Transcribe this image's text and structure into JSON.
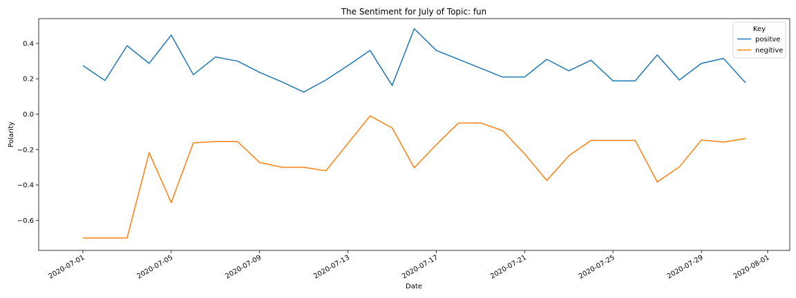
{
  "chart_data": {
    "type": "line",
    "title": "The Sentiment for July of Topic: fun",
    "xlabel": "Date",
    "ylabel": "Polarity",
    "x": [
      "2020-07-01",
      "2020-07-02",
      "2020-07-03",
      "2020-07-04",
      "2020-07-05",
      "2020-07-06",
      "2020-07-07",
      "2020-07-08",
      "2020-07-09",
      "2020-07-10",
      "2020-07-11",
      "2020-07-12",
      "2020-07-13",
      "2020-07-14",
      "2020-07-15",
      "2020-07-16",
      "2020-07-17",
      "2020-07-18",
      "2020-07-19",
      "2020-07-20",
      "2020-07-21",
      "2020-07-22",
      "2020-07-23",
      "2020-07-24",
      "2020-07-25",
      "2020-07-26",
      "2020-07-27",
      "2020-07-28",
      "2020-07-29",
      "2020-07-30",
      "2020-07-31"
    ],
    "series": [
      {
        "name": "positve",
        "color": "#1f77b4",
        "values": [
          0.275,
          0.19,
          0.387,
          0.287,
          0.447,
          0.223,
          0.323,
          0.3,
          0.236,
          0.183,
          0.125,
          0.193,
          0.275,
          0.36,
          0.162,
          0.483,
          0.36,
          0.31,
          0.26,
          0.21,
          0.21,
          0.31,
          0.245,
          0.305,
          0.188,
          0.188,
          0.335,
          0.193,
          0.287,
          0.315,
          0.177
        ]
      },
      {
        "name": "negitive",
        "color": "#ff7f0e",
        "values": [
          -0.7,
          -0.7,
          -0.7,
          -0.218,
          -0.5,
          -0.162,
          -0.155,
          -0.155,
          -0.273,
          -0.3,
          -0.3,
          -0.32,
          -0.165,
          -0.01,
          -0.078,
          -0.303,
          -0.172,
          -0.05,
          -0.05,
          -0.093,
          -0.225,
          -0.375,
          -0.235,
          -0.148,
          -0.148,
          -0.148,
          -0.383,
          -0.298,
          -0.146,
          -0.158,
          -0.138
        ]
      }
    ],
    "xlim": [
      "2020-06-29",
      "2020-08-02"
    ],
    "ylim": [
      -0.77,
      0.54
    ],
    "y_ticks": [
      0.4,
      0.2,
      0.0,
      -0.2,
      -0.4,
      -0.6
    ],
    "y_tick_labels": [
      "0.4",
      "0.2",
      "0.0",
      "−0.2",
      "−0.4",
      "−0.6"
    ],
    "x_ticks": [
      "2020-07-01",
      "2020-07-05",
      "2020-07-09",
      "2020-07-13",
      "2020-07-17",
      "2020-07-21",
      "2020-07-25",
      "2020-07-29",
      "2020-08-01"
    ],
    "legend": {
      "title": "Key",
      "position": "top-right"
    },
    "grid": false
  }
}
